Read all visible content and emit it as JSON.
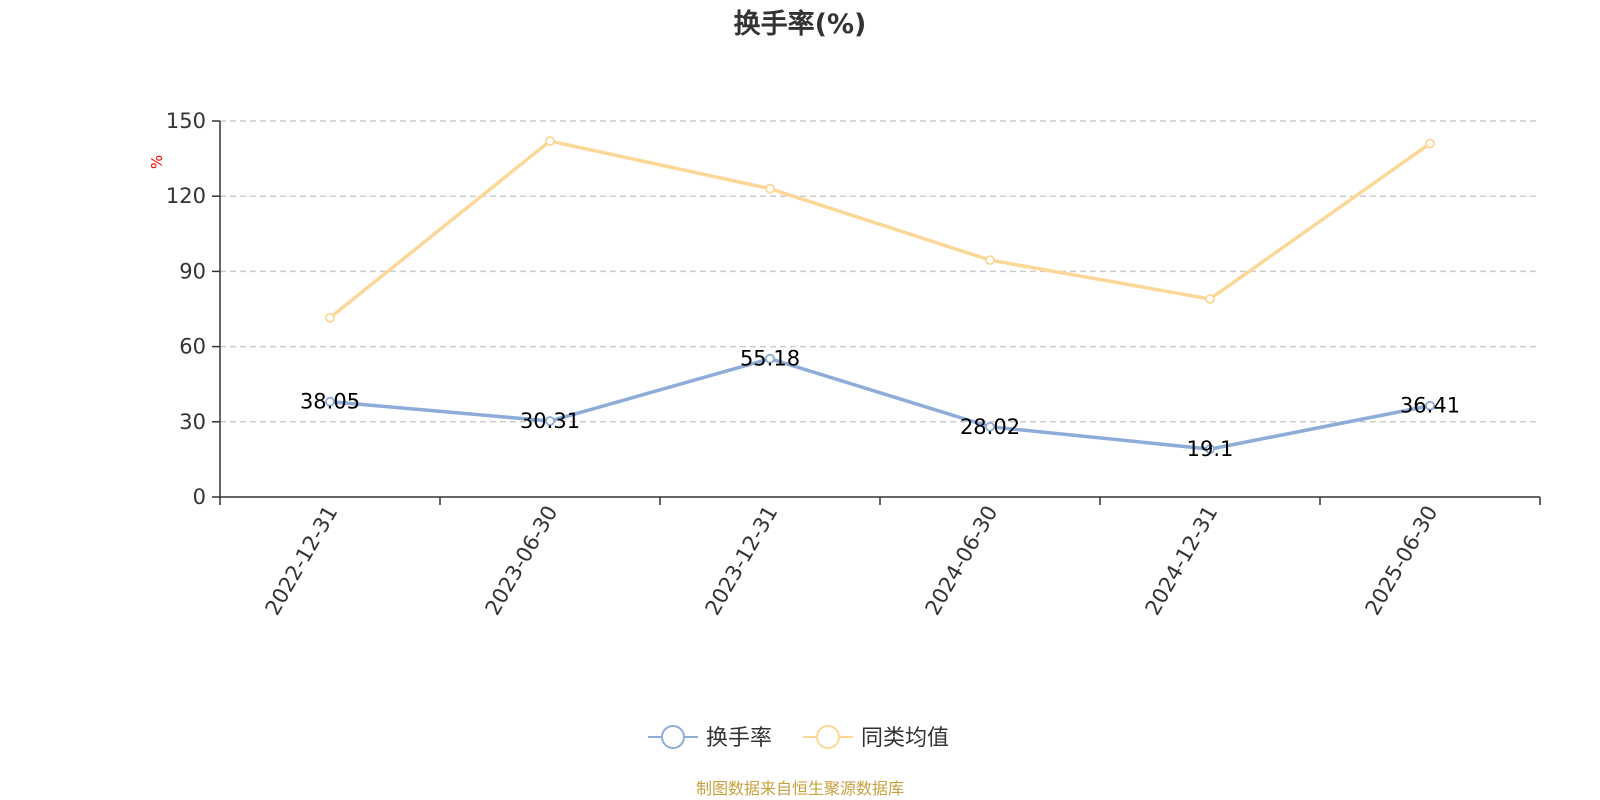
{
  "chart_data": {
    "type": "line",
    "title": "换手率(%)",
    "ylabel": "%",
    "xlabel": "",
    "categories": [
      "2022-12-31",
      "2023-06-30",
      "2023-12-31",
      "2024-06-30",
      "2024-12-31",
      "2025-06-30"
    ],
    "ylim": [
      0,
      150
    ],
    "yticks": [
      0,
      30,
      60,
      90,
      120,
      150
    ],
    "grid": true,
    "legend_position": "bottom-center",
    "series": [
      {
        "name": "换手率",
        "color": "#8eacd8",
        "values": [
          38.05,
          30.31,
          55.18,
          28.02,
          19.1,
          36.41
        ],
        "labels": [
          "38.05",
          "30.31",
          "55.18",
          "28.02",
          "19.1",
          "36.41"
        ]
      },
      {
        "name": "同类均值",
        "color": "#fbd898",
        "values": [
          71.5,
          142.0,
          123.0,
          94.5,
          79.0,
          141.0
        ]
      }
    ],
    "source_note": "制图数据来自恒生聚源数据库"
  }
}
